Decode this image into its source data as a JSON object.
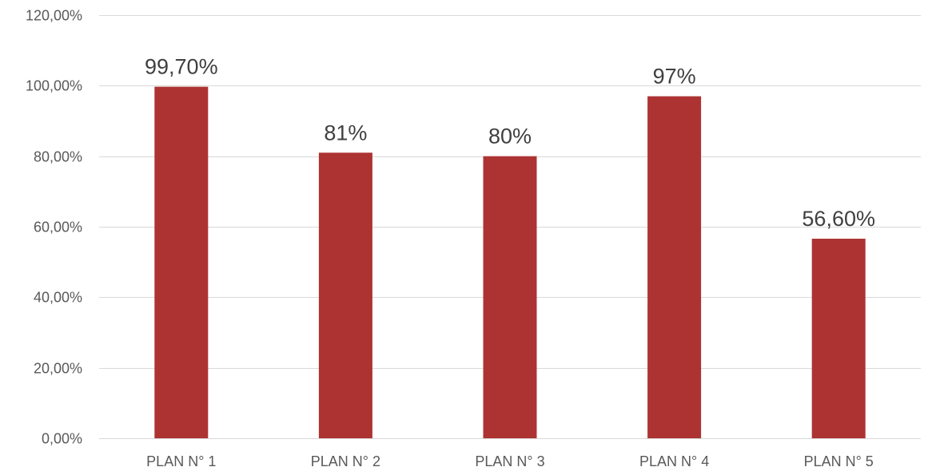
{
  "chart_data": {
    "type": "bar",
    "title": "",
    "xlabel": "",
    "ylabel": "",
    "categories": [
      "PLAN N° 1",
      "PLAN N° 2",
      "PLAN N° 3",
      "PLAN N° 4",
      "PLAN N° 5"
    ],
    "values": [
      99.7,
      81,
      80,
      97,
      56.6
    ],
    "data_labels": [
      "99,70%",
      "81%",
      "80%",
      "97%",
      "56,60%"
    ],
    "ylim": [
      0,
      120
    ],
    "yticks": [
      0,
      20,
      40,
      60,
      80,
      100,
      120
    ],
    "ytick_labels": [
      "0,00%",
      "20,00%",
      "40,00%",
      "60,00%",
      "80,00%",
      "100,00%",
      "120,00%"
    ],
    "grid": true,
    "legend": "none",
    "bar_color": "#ad3333"
  }
}
